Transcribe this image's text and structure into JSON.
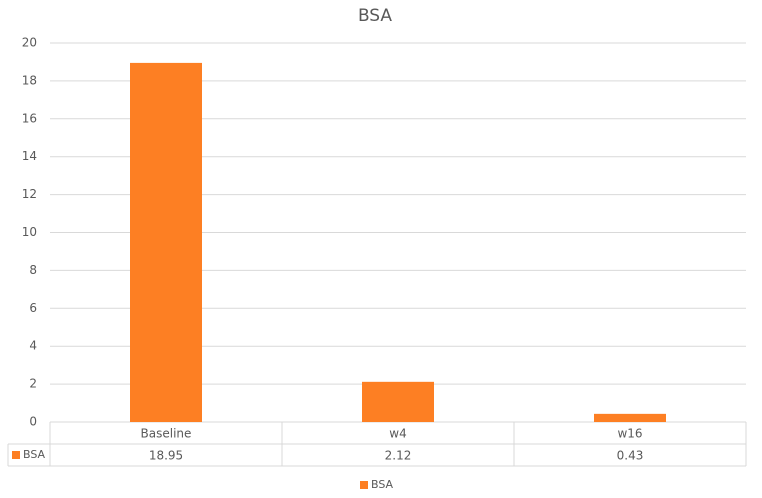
{
  "chart_data": {
    "type": "bar",
    "title": "BSA",
    "categories": [
      "Baseline",
      "w4",
      "w16"
    ],
    "series": [
      {
        "name": "BSA",
        "color": "#fd7f23",
        "values": [
          18.95,
          2.12,
          0.43
        ]
      }
    ],
    "ylim": [
      0,
      20
    ],
    "yticks": [
      0,
      2,
      4,
      6,
      8,
      10,
      12,
      14,
      16,
      18,
      20
    ],
    "grid": true,
    "data_table": true,
    "legend": "bottom"
  }
}
